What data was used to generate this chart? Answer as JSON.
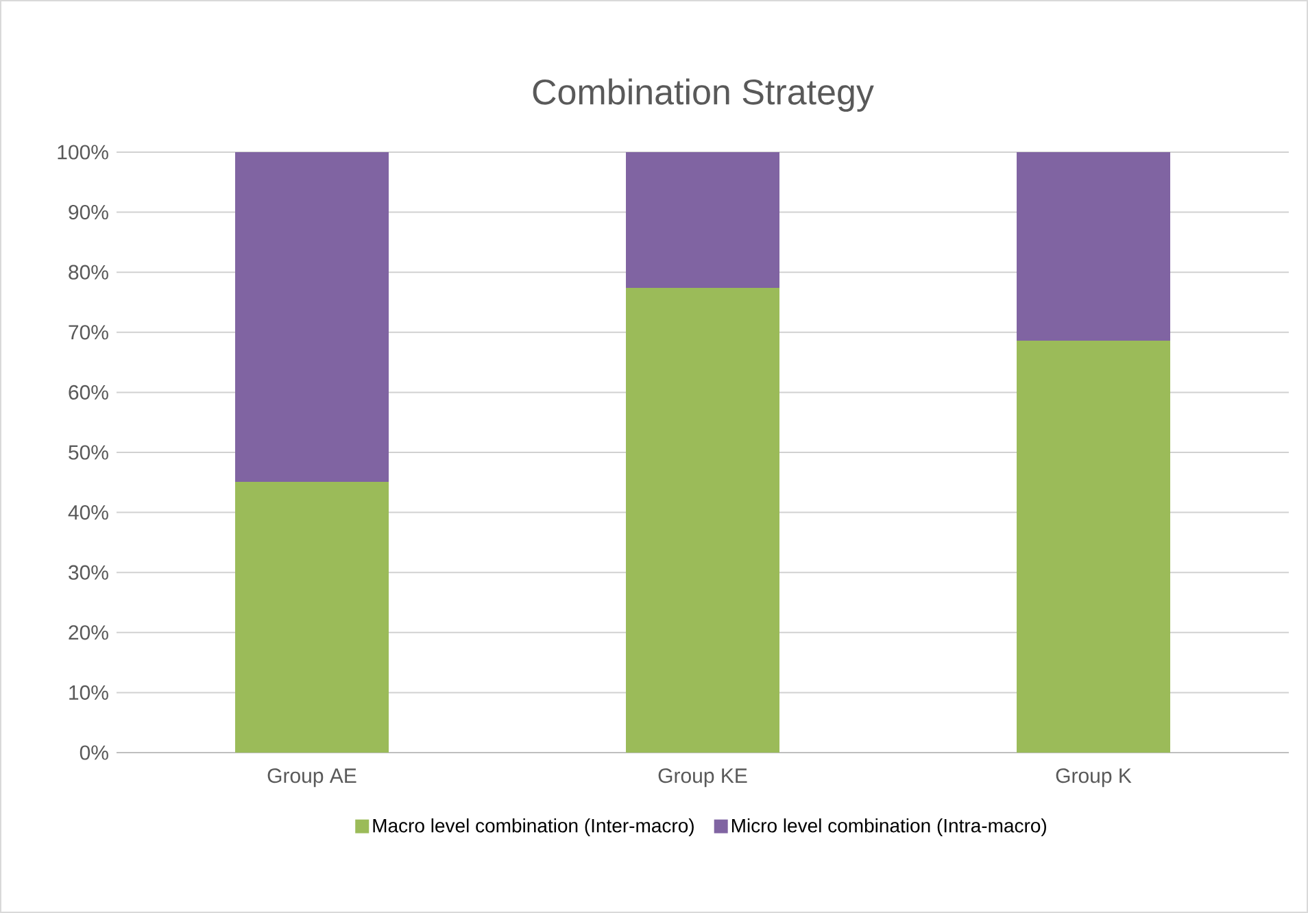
{
  "chart_data": {
    "type": "bar",
    "title": "Combination Strategy",
    "stacked": true,
    "categories": [
      "Group AE",
      "Group KE",
      "Group K"
    ],
    "series": [
      {
        "name": "Macro level combination (Inter-macro)",
        "color": "#9bbb59",
        "values": [
          45.1,
          77.4,
          68.6
        ]
      },
      {
        "name": "Micro level combination (Intra-macro)",
        "color": "#8064a2",
        "values": [
          54.9,
          22.6,
          31.4
        ]
      }
    ],
    "ylim": [
      0,
      100
    ],
    "yticks": [
      {
        "value": 0,
        "label": "0%"
      },
      {
        "value": 10,
        "label": "10%"
      },
      {
        "value": 20,
        "label": "20%"
      },
      {
        "value": 30,
        "label": "30%"
      },
      {
        "value": 40,
        "label": "40%"
      },
      {
        "value": 50,
        "label": "50%"
      },
      {
        "value": 60,
        "label": "60%"
      },
      {
        "value": 70,
        "label": "70%"
      },
      {
        "value": 80,
        "label": "80%"
      },
      {
        "value": 90,
        "label": "90%"
      },
      {
        "value": 100,
        "label": "100%"
      }
    ],
    "grid": "y",
    "legend": "bottom"
  }
}
